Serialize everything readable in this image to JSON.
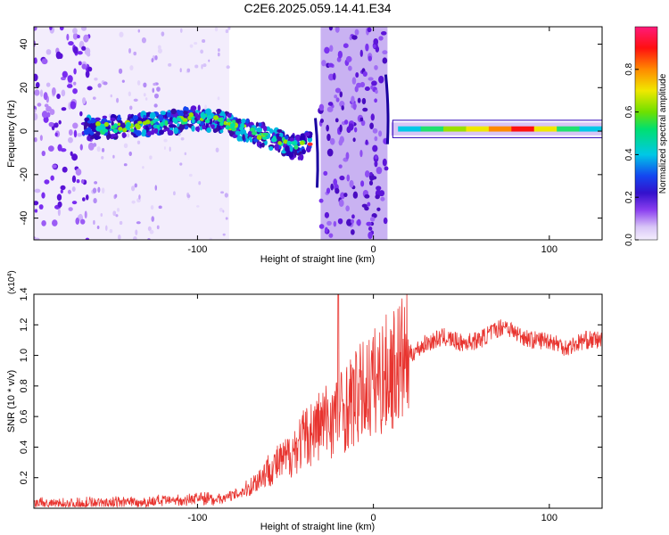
{
  "title": "C2E6.2025.059.14.41.E34",
  "colors": {
    "line": "#e8342f",
    "spectrum_core": "#3a0ca3",
    "halo": "#9b59f5"
  },
  "chart_data": [
    {
      "type": "heatmap",
      "xlabel": "Height of straight line (km)",
      "ylabel": "Frequency (Hz)",
      "xlim": [
        -193,
        130
      ],
      "ylim": [
        -50,
        48
      ],
      "x_ticks": [
        "-100",
        "0",
        "100"
      ],
      "y_ticks": [
        "40",
        "20",
        "0",
        "-20",
        "-40"
      ],
      "x_tick_values": [
        -100,
        0,
        100
      ],
      "y_tick_values": [
        40,
        20,
        0,
        -20,
        -40
      ],
      "colorbar": {
        "label": "Normalized spectral amplitude",
        "range": [
          0,
          1
        ],
        "ticks": [
          "0.0",
          "0.2",
          "0.4",
          "0.6",
          "0.8"
        ],
        "tick_values": [
          0,
          0.2,
          0.4,
          0.6,
          0.8
        ]
      },
      "ridge": [
        {
          "x": -165,
          "y": 1
        },
        {
          "x": -140,
          "y": 2
        },
        {
          "x": -115,
          "y": 4
        },
        {
          "x": -100,
          "y": 6
        },
        {
          "x": -85,
          "y": 4
        },
        {
          "x": -70,
          "y": 0
        },
        {
          "x": -55,
          "y": -4
        },
        {
          "x": -42,
          "y": -8
        },
        {
          "x": -36,
          "y": -4
        },
        {
          "x": 12,
          "y": 1
        },
        {
          "x": 50,
          "y": 1
        },
        {
          "x": 100,
          "y": 1
        },
        {
          "x": 130,
          "y": 1
        }
      ]
    },
    {
      "type": "line",
      "xlabel": "Height of straight line (km)",
      "ylabel": "SNR (10 * v/v)",
      "y_multiplier": "(x10^4)",
      "y_multiplier_base": "(x10",
      "y_multiplier_exp": "4",
      "y_multiplier_close": ")",
      "xlim": [
        -193,
        130
      ],
      "ylim": [
        0,
        1.4
      ],
      "x_ticks": [
        "-100",
        "0",
        "100"
      ],
      "y_ticks": [
        "0.2",
        "0.4",
        "0.6",
        "0.8",
        "1.0",
        "1.2",
        "1.4"
      ],
      "x_tick_values": [
        -100,
        0,
        100
      ],
      "y_tick_values": [
        0.2,
        0.4,
        0.6,
        0.8,
        1.0,
        1.2,
        1.4
      ],
      "series": [
        {
          "x": [
            -193,
            -170,
            -150,
            -130,
            -110,
            -100,
            -90,
            -80,
            -70,
            -60,
            -50,
            -40,
            -30,
            -20,
            -10,
            0,
            10,
            20,
            30,
            40,
            50,
            60,
            70,
            75,
            80,
            90,
            100,
            110,
            120,
            130
          ],
          "values": [
            0.03,
            0.03,
            0.04,
            0.04,
            0.05,
            0.07,
            0.06,
            0.08,
            0.14,
            0.25,
            0.32,
            0.45,
            0.55,
            0.62,
            0.72,
            0.82,
            0.9,
            1.0,
            1.08,
            1.12,
            1.08,
            1.1,
            1.17,
            1.2,
            1.15,
            1.1,
            1.1,
            1.05,
            1.1,
            1.1
          ]
        }
      ],
      "spike": {
        "x": -20,
        "y": 1.4
      }
    }
  ]
}
